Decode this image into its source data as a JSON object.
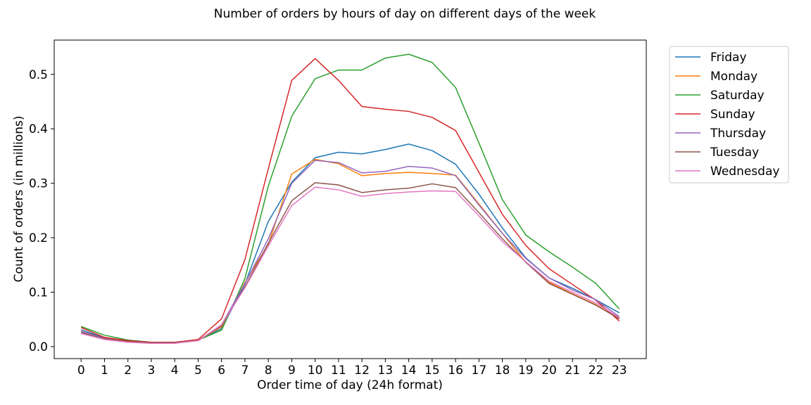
{
  "chart_data": {
    "type": "line",
    "title": "Number of orders by hours of day on different days of the week",
    "xlabel": "Order time of day (24h format)",
    "ylabel": "Count of orders (in millions)",
    "x": [
      0,
      1,
      2,
      3,
      4,
      5,
      6,
      7,
      8,
      9,
      10,
      11,
      12,
      13,
      14,
      15,
      16,
      17,
      18,
      19,
      20,
      21,
      22,
      23
    ],
    "x_tick_labels": [
      "0",
      "1",
      "2",
      "3",
      "4",
      "5",
      "6",
      "7",
      "8",
      "9",
      "10",
      "11",
      "12",
      "13",
      "14",
      "15",
      "16",
      "17",
      "18",
      "19",
      "20",
      "21",
      "22",
      "23"
    ],
    "y_ticks": [
      0.0,
      0.1,
      0.2,
      0.3,
      0.4,
      0.5
    ],
    "y_tick_labels": [
      "0.0",
      "0.1",
      "0.2",
      "0.3",
      "0.4",
      "0.5"
    ],
    "xlim": [
      -1.15,
      24.15
    ],
    "ylim": [
      -0.022,
      0.563
    ],
    "grid": false,
    "legend_position": "outside-right-top",
    "series": [
      {
        "name": "Friday",
        "color": "#1f77b4",
        "values": [
          0.031,
          0.016,
          0.01,
          0.007,
          0.007,
          0.012,
          0.033,
          0.115,
          0.23,
          0.302,
          0.347,
          0.357,
          0.354,
          0.362,
          0.372,
          0.36,
          0.335,
          0.28,
          0.218,
          0.163,
          0.126,
          0.107,
          0.086,
          0.062
        ]
      },
      {
        "name": "Monday",
        "color": "#ff7f0e",
        "values": [
          0.028,
          0.015,
          0.01,
          0.007,
          0.007,
          0.012,
          0.036,
          0.118,
          0.188,
          0.317,
          0.344,
          0.336,
          0.314,
          0.318,
          0.32,
          0.318,
          0.315,
          0.262,
          0.208,
          0.155,
          0.118,
          0.097,
          0.077,
          0.052
        ]
      },
      {
        "name": "Saturday",
        "color": "#2ca02c",
        "values": [
          0.037,
          0.021,
          0.012,
          0.008,
          0.008,
          0.012,
          0.03,
          0.125,
          0.295,
          0.423,
          0.492,
          0.508,
          0.508,
          0.53,
          0.537,
          0.522,
          0.476,
          0.374,
          0.27,
          0.205,
          0.174,
          0.146,
          0.116,
          0.069
        ]
      },
      {
        "name": "Sunday",
        "color": "#d62728",
        "values": [
          0.035,
          0.017,
          0.011,
          0.008,
          0.008,
          0.013,
          0.051,
          0.16,
          0.327,
          0.489,
          0.529,
          0.489,
          0.441,
          0.436,
          0.432,
          0.421,
          0.397,
          0.32,
          0.243,
          0.186,
          0.143,
          0.114,
          0.085,
          0.047
        ]
      },
      {
        "name": "Thursday",
        "color": "#9467bd",
        "values": [
          0.028,
          0.015,
          0.009,
          0.007,
          0.007,
          0.011,
          0.04,
          0.116,
          0.198,
          0.3,
          0.342,
          0.338,
          0.319,
          0.322,
          0.331,
          0.328,
          0.314,
          0.26,
          0.208,
          0.162,
          0.126,
          0.104,
          0.086,
          0.055
        ]
      },
      {
        "name": "Tuesday",
        "color": "#8c564b",
        "values": [
          0.026,
          0.014,
          0.009,
          0.007,
          0.007,
          0.011,
          0.038,
          0.11,
          0.19,
          0.268,
          0.301,
          0.297,
          0.283,
          0.288,
          0.291,
          0.299,
          0.292,
          0.246,
          0.198,
          0.155,
          0.116,
          0.096,
          0.076,
          0.051
        ]
      },
      {
        "name": "Wednesday",
        "color": "#e377c2",
        "values": [
          0.024,
          0.013,
          0.008,
          0.006,
          0.006,
          0.011,
          0.04,
          0.108,
          0.185,
          0.259,
          0.293,
          0.288,
          0.276,
          0.281,
          0.284,
          0.286,
          0.285,
          0.24,
          0.193,
          0.156,
          0.12,
          0.1,
          0.08,
          0.053
        ]
      }
    ]
  }
}
